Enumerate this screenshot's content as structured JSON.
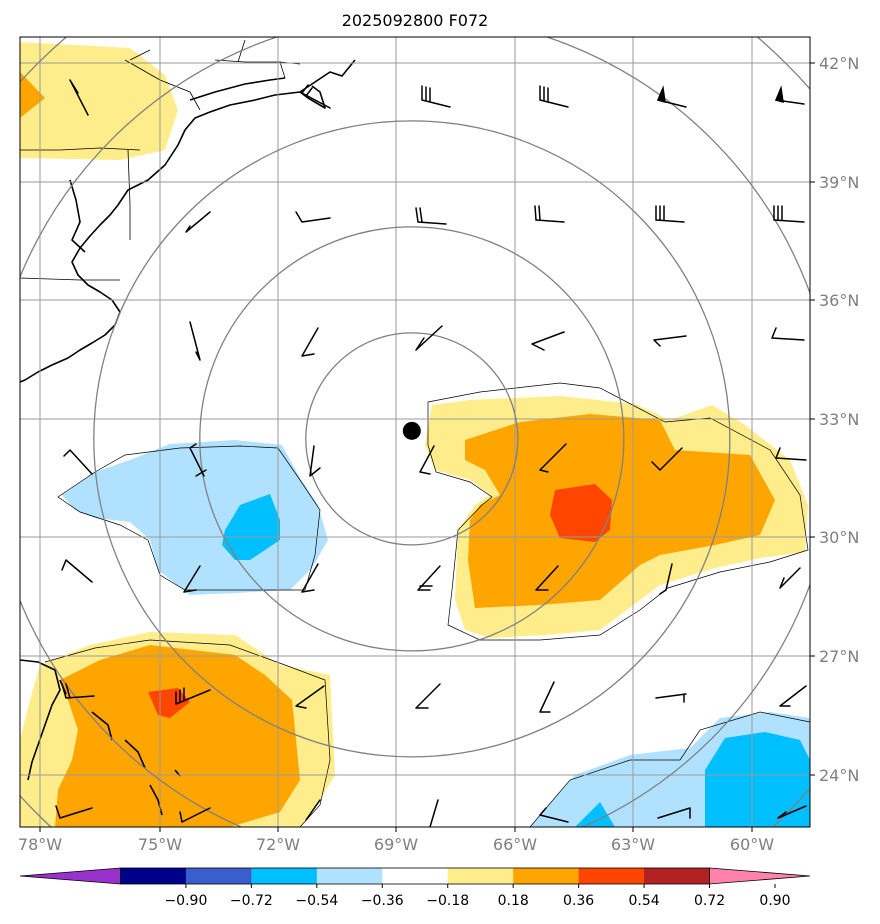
{
  "title": "2025092800 F072",
  "map": {
    "lon_labels": [
      "78°W",
      "75°W",
      "72°W",
      "69°W",
      "66°W",
      "63°W",
      "60°W"
    ],
    "lat_labels": [
      "42°N",
      "39°N",
      "36°N",
      "33°N",
      "30°N",
      "27°N",
      "24°N"
    ],
    "center_marker": {
      "lon": -68.6,
      "lat": 32.7
    },
    "range_rings": 5
  },
  "colorbar": {
    "labels": [
      "−0.90",
      "−0.72",
      "−0.54",
      "−0.36",
      "−0.18",
      "0.18",
      "0.36",
      "0.54",
      "0.72",
      "0.90"
    ],
    "colors": [
      "#9932cc",
      "#00008b",
      "#3a5fcd",
      "#00bfff",
      "#b0e2ff",
      "#ffffff",
      "#ffec8b",
      "#ffa500",
      "#ff4500",
      "#b22222",
      "#ff82ab"
    ],
    "under_color": "#9932cc",
    "over_color": "#ff82ab"
  },
  "fill_colors": {
    "yellow": "#ffec8b",
    "orange": "#ffa500",
    "red": "#ff4500",
    "lightblue": "#b0e2ff",
    "blue": "#00bfff"
  }
}
